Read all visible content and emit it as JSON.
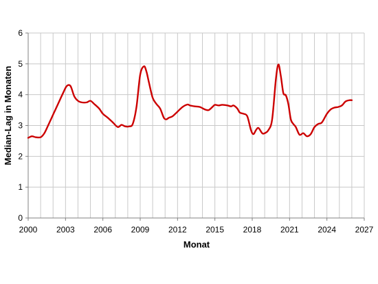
{
  "chart_data": {
    "type": "line",
    "xlabel": "Monat",
    "ylabel": "Median-Lag in Monaten",
    "xlim": [
      2000,
      2027
    ],
    "ylim": [
      0,
      6
    ],
    "x_ticks": [
      2000,
      2003,
      2006,
      2009,
      2012,
      2015,
      2018,
      2021,
      2024,
      2027
    ],
    "y_ticks": [
      0,
      1,
      2,
      3,
      4,
      5,
      6
    ],
    "grid": {
      "vertical_step": 1,
      "horizontal_step": 1
    },
    "line_color": "#cc0000",
    "series": [
      {
        "x": [
          2000.0,
          2000.3,
          2000.6,
          2001.0,
          2001.3,
          2001.6,
          2002.0,
          2002.4,
          2002.8,
          2003.1,
          2003.4,
          2003.7,
          2004.0,
          2004.3,
          2004.7,
          2005.0,
          2005.3,
          2005.7,
          2006.0,
          2006.4,
          2006.8,
          2007.2,
          2007.5,
          2007.8,
          2008.1,
          2008.4,
          2008.7,
          2009.0,
          2009.3,
          2009.5,
          2009.7,
          2010.0,
          2010.3,
          2010.6,
          2010.9,
          2011.1,
          2011.3,
          2011.6,
          2012.0,
          2012.4,
          2012.8,
          2013.0,
          2013.4,
          2013.8,
          2014.2,
          2014.5,
          2014.8,
          2015.0,
          2015.3,
          2015.6,
          2016.0,
          2016.3,
          2016.5,
          2016.8,
          2017.0,
          2017.3,
          2017.6,
          2017.9,
          2018.1,
          2018.3,
          2018.5,
          2018.8,
          2019.0,
          2019.3,
          2019.6,
          2019.9,
          2020.1,
          2020.3,
          2020.5,
          2020.7,
          2020.9,
          2021.1,
          2021.3,
          2021.5,
          2021.8,
          2022.1,
          2022.4,
          2022.7,
          2023.0,
          2023.3,
          2023.6,
          2024.0,
          2024.3,
          2024.6,
          2024.9,
          2025.2,
          2025.5,
          2025.8,
          2026.0
        ],
        "y": [
          2.6,
          2.65,
          2.62,
          2.62,
          2.75,
          3.0,
          3.35,
          3.7,
          4.05,
          4.28,
          4.28,
          3.95,
          3.8,
          3.75,
          3.75,
          3.8,
          3.7,
          3.55,
          3.38,
          3.25,
          3.1,
          2.95,
          3.02,
          2.97,
          2.97,
          3.05,
          3.6,
          4.65,
          4.92,
          4.75,
          4.4,
          3.9,
          3.7,
          3.55,
          3.25,
          3.2,
          3.25,
          3.3,
          3.45,
          3.6,
          3.68,
          3.65,
          3.62,
          3.6,
          3.52,
          3.5,
          3.6,
          3.67,
          3.65,
          3.67,
          3.65,
          3.62,
          3.65,
          3.55,
          3.42,
          3.38,
          3.3,
          2.85,
          2.72,
          2.85,
          2.92,
          2.75,
          2.75,
          2.85,
          3.2,
          4.5,
          4.98,
          4.6,
          4.05,
          3.98,
          3.7,
          3.2,
          3.05,
          2.95,
          2.7,
          2.75,
          2.65,
          2.72,
          2.95,
          3.05,
          3.1,
          3.38,
          3.52,
          3.58,
          3.6,
          3.65,
          3.78,
          3.82,
          3.82
        ]
      }
    ]
  }
}
